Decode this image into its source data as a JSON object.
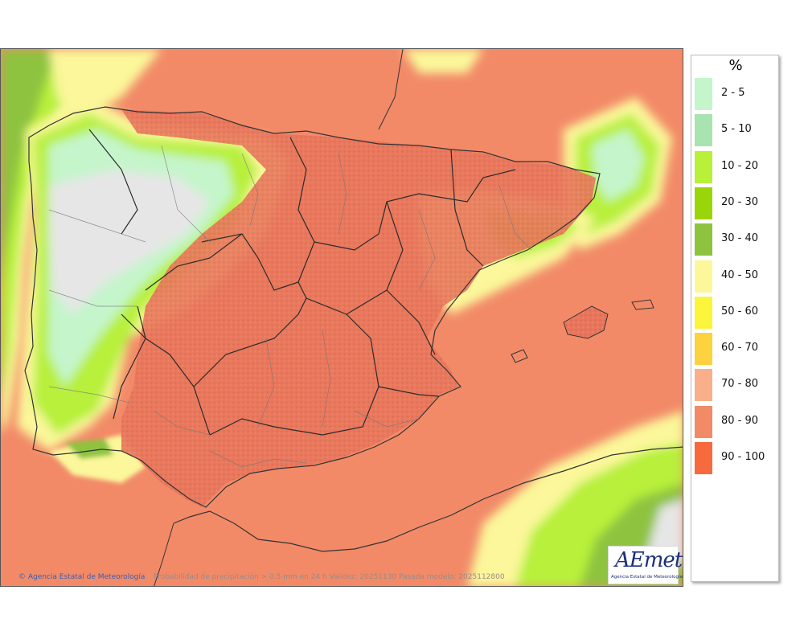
{
  "legend": {
    "unit": "%",
    "items": [
      {
        "label": "2 - 5",
        "color": "#c5f5cb"
      },
      {
        "label": "5 - 10",
        "color": "#a8e3b0"
      },
      {
        "label": "10 - 20",
        "color": "#b8f03a"
      },
      {
        "label": "20 - 30",
        "color": "#9ad50b"
      },
      {
        "label": "30 - 40",
        "color": "#8ec33f"
      },
      {
        "label": "40 - 50",
        "color": "#fbf79a"
      },
      {
        "label": "50 - 60",
        "color": "#fbf53b"
      },
      {
        "label": "60 - 70",
        "color": "#fcd23e"
      },
      {
        "label": "70 - 80",
        "color": "#f9b08a"
      },
      {
        "label": "80 - 90",
        "color": "#f28a68"
      },
      {
        "label": "90 - 100",
        "color": "#f76a3e"
      }
    ]
  },
  "footer": {
    "credit": "Agencia Estatal de Meteorología",
    "caption": "Probabilidad de precipitación > 0.5 mm en 24 h Validez: 20251130 Pasada modelo: 2025112800"
  },
  "logo": {
    "name": "AEmet",
    "subtitle": "Agencia Estatal de Meteorología"
  }
}
